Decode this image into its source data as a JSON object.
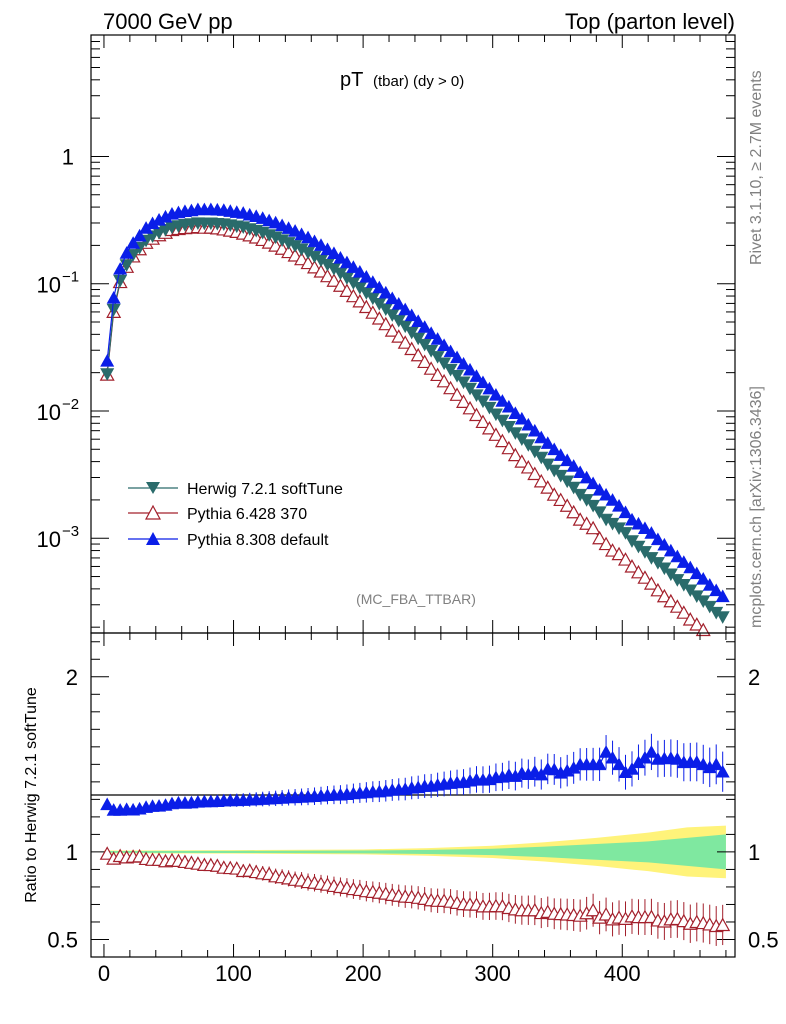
{
  "header": {
    "left": "7000 GeV pp",
    "right": "Top (parton level)"
  },
  "title": {
    "main": "pT",
    "sub": "(tbar) (dy > 0)"
  },
  "side_labels": {
    "rivet": "Rivet 3.1.10, ≥ 2.7M events",
    "mcplots": "mcplots.cern.ch [arXiv:1306.3436]"
  },
  "analysis_tag": "(MC_FBA_TTBAR)",
  "ratio_ylabel": "Ratio to Herwig 7.2.1 softTune",
  "colors": {
    "herwig": "#2a6b6b",
    "pythia6": "#a3202c",
    "pythia8": "#0a1ee8",
    "band_green": "#7fe8a0",
    "band_yellow": "#fff37a"
  },
  "chart_data": [
    {
      "type": "line",
      "yscale": "log",
      "ylim": [
        0.00018,
        9.0
      ],
      "xlim": [
        -10,
        487
      ],
      "yticks": [
        {
          "value": 1,
          "base": "1",
          "exp": ""
        },
        {
          "value": 0.1,
          "base": "10",
          "exp": "−1"
        },
        {
          "value": 0.01,
          "base": "10",
          "exp": "−2"
        },
        {
          "value": 0.001,
          "base": "10",
          "exp": "−3"
        }
      ],
      "legend_position": "lower-left",
      "x": [
        2.5,
        7.5,
        12.5,
        17.5,
        22.5,
        27.5,
        32.5,
        37.5,
        42.5,
        47.5,
        52.5,
        57.5,
        62.5,
        67.5,
        72.5,
        77.5,
        82.5,
        87.5,
        92.5,
        97.5,
        102.5,
        107.5,
        112.5,
        117.5,
        122.5,
        127.5,
        132.5,
        137.5,
        142.5,
        147.5,
        152.5,
        157.5,
        162.5,
        167.5,
        172.5,
        177.5,
        182.5,
        187.5,
        192.5,
        197.5,
        202.5,
        207.5,
        212.5,
        217.5,
        222.5,
        227.5,
        232.5,
        237.5,
        242.5,
        247.5,
        252.5,
        257.5,
        262.5,
        267.5,
        272.5,
        277.5,
        282.5,
        287.5,
        292.5,
        297.5,
        302.5,
        307.5,
        312.5,
        317.5,
        322.5,
        327.5,
        332.5,
        337.5,
        342.5,
        347.5,
        352.5,
        357.5,
        362.5,
        367.5,
        372.5,
        377.5,
        382.5,
        387.5,
        392.5,
        397.5,
        402.5,
        407.5,
        412.5,
        417.5,
        422.5,
        427.5,
        432.5,
        437.5,
        442.5,
        447.5,
        452.5,
        457.5,
        462.5,
        467.5,
        472.5,
        477.5
      ],
      "series": [
        {
          "name": "Herwig 7.2.1 softTune",
          "marker": "triangle-down",
          "values": [
            0.0195,
            0.0625,
            0.1055,
            0.1402,
            0.1683,
            0.1914,
            0.2183,
            0.2364,
            0.2518,
            0.2653,
            0.2774,
            0.2837,
            0.2901,
            0.2938,
            0.2986,
            0.2976,
            0.2983,
            0.2955,
            0.2934,
            0.2879,
            0.2822,
            0.2778,
            0.2687,
            0.2609,
            0.2517,
            0.2408,
            0.2315,
            0.2198,
            0.2088,
            0.1982,
            0.1862,
            0.1754,
            0.1633,
            0.1524,
            0.1409,
            0.1309,
            0.1205,
            0.1106,
            0.1013,
            0.0928,
            0.0845,
            0.0767,
            0.0695,
            0.0631,
            0.0567,
            0.0512,
            0.0462,
            0.0413,
            0.0371,
            0.0332,
            0.0297,
            0.0266,
            0.0237,
            0.0211,
            0.0189,
            0.0168,
            0.015,
            0.0133,
            0.0119,
            0.0106,
            0.0094,
            0.0084,
            0.0075,
            0.0067,
            0.006,
            0.0054,
            0.0048,
            0.0043,
            0.0038,
            0.0034,
            0.0031,
            0.0028,
            0.0025,
            0.0022,
            0.002,
            0.0018,
            0.0016,
            0.0014,
            0.0013,
            0.0012,
            0.0011,
            0.00095,
            0.00086,
            0.00078,
            0.0007,
            0.00064,
            0.00058,
            0.00052,
            0.00047,
            0.00043,
            0.00039,
            0.00035,
            0.00032,
            0.00029,
            0.00026,
            0.00024
          ]
        },
        {
          "name": "Pythia 6.428 370",
          "marker": "triangle-up-open",
          "values": [
            0.0193,
            0.0601,
            0.1031,
            0.1358,
            0.1638,
            0.1866,
            0.2096,
            0.2258,
            0.2405,
            0.2512,
            0.2644,
            0.2693,
            0.2736,
            0.2756,
            0.2785,
            0.2756,
            0.2758,
            0.2721,
            0.2671,
            0.2615,
            0.2554,
            0.2475,
            0.2399,
            0.2309,
            0.2209,
            0.2104,
            0.1993,
            0.1882,
            0.1773,
            0.1667,
            0.1559,
            0.1453,
            0.1345,
            0.1247,
            0.1146,
            0.1055,
            0.0964,
            0.0879,
            0.0798,
            0.0727,
            0.0656,
            0.0592,
            0.0533,
            0.0481,
            0.0428,
            0.0384,
            0.0344,
            0.0307,
            0.0274,
            0.0243,
            0.0215,
            0.0192,
            0.0171,
            0.0151,
            0.0134,
            0.0118,
            0.0105,
            0.0093,
            0.0082,
            0.0073,
            0.0065,
            0.0058,
            0.0051,
            0.0045,
            0.004,
            0.0036,
            0.0032,
            0.0028,
            0.0025,
            0.0022,
            0.002,
            0.0018,
            0.0016,
            0.0014,
            0.0013,
            0.0012,
            0.001,
            0.0009,
            0.0008,
            0.00075,
            0.00068,
            0.0006,
            0.00054,
            0.00049,
            0.00044,
            0.00039,
            0.00035,
            0.00032,
            0.00029,
            0.00026,
            0.00023,
            0.00021,
            0.00019,
            0.00017,
            0.00015,
            0.00014
          ]
        },
        {
          "name": "Pythia 8.308 default",
          "marker": "triangle-up",
          "values": [
            0.0248,
            0.0775,
            0.1308,
            0.1744,
            0.2089,
            0.2387,
            0.2741,
            0.2983,
            0.3181,
            0.3364,
            0.3542,
            0.3633,
            0.3713,
            0.3766,
            0.3839,
            0.3832,
            0.3843,
            0.3813,
            0.3792,
            0.3726,
            0.3654,
            0.3601,
            0.3487,
            0.3391,
            0.3277,
            0.3141,
            0.3024,
            0.2875,
            0.2737,
            0.2601,
            0.2447,
            0.2308,
            0.2152,
            0.2013,
            0.1865,
            0.1736,
            0.1599,
            0.1471,
            0.1351,
            0.1241,
            0.1132,
            0.1031,
            0.0935,
            0.0851,
            0.0768,
            0.0695,
            0.0628,
            0.0564,
            0.0508,
            0.0457,
            0.0409,
            0.0368,
            0.0329,
            0.0294,
            0.0264,
            0.0235,
            0.0211,
            0.0188,
            0.0168,
            0.015,
            0.0134,
            0.012,
            0.0108,
            0.0096,
            0.0087,
            0.0078,
            0.007,
            0.0062,
            0.0056,
            0.005,
            0.0045,
            0.0041,
            0.0037,
            0.0033,
            0.003,
            0.0027,
            0.0024,
            0.0022,
            0.002,
            0.0018,
            0.0016,
            0.0014,
            0.0013,
            0.0012,
            0.0011,
            0.00098,
            0.00089,
            0.0008,
            0.00072,
            0.00065,
            0.00059,
            0.00053,
            0.00048,
            0.00043,
            0.00039,
            0.00035
          ]
        }
      ]
    },
    {
      "type": "line",
      "ylabel": "Ratio to Herwig 7.2.1 softTune",
      "ylim": [
        0.4,
        2.25
      ],
      "yticks": [
        0.5,
        1,
        2
      ],
      "xlim": [
        -10,
        487
      ],
      "xticks": [
        0,
        100,
        200,
        300,
        400
      ],
      "x": [
        2.5,
        7.5,
        12.5,
        17.5,
        22.5,
        27.5,
        32.5,
        37.5,
        42.5,
        47.5,
        52.5,
        57.5,
        62.5,
        67.5,
        72.5,
        77.5,
        82.5,
        87.5,
        92.5,
        97.5,
        102.5,
        107.5,
        112.5,
        117.5,
        122.5,
        127.5,
        132.5,
        137.5,
        142.5,
        147.5,
        152.5,
        157.5,
        162.5,
        167.5,
        172.5,
        177.5,
        182.5,
        187.5,
        192.5,
        197.5,
        202.5,
        207.5,
        212.5,
        217.5,
        222.5,
        227.5,
        232.5,
        237.5,
        242.5,
        247.5,
        252.5,
        257.5,
        262.5,
        267.5,
        272.5,
        277.5,
        282.5,
        287.5,
        292.5,
        297.5,
        302.5,
        307.5,
        312.5,
        317.5,
        322.5,
        327.5,
        332.5,
        337.5,
        342.5,
        347.5,
        352.5,
        357.5,
        362.5,
        367.5,
        372.5,
        377.5,
        382.5,
        387.5,
        392.5,
        397.5,
        402.5,
        407.5,
        412.5,
        417.5,
        422.5,
        427.5,
        432.5,
        437.5,
        442.5,
        447.5,
        452.5,
        457.5,
        462.5,
        467.5,
        472.5,
        477.5
      ],
      "reference": {
        "name": "Herwig 7.2.1 softTune",
        "value": 1.0
      },
      "band": {
        "x": [
          0,
          100,
          200,
          250,
          300,
          340,
          380,
          420,
          450,
          480
        ],
        "inner": [
          0.005,
          0.006,
          0.008,
          0.012,
          0.018,
          0.03,
          0.045,
          0.06,
          0.08,
          0.1
        ],
        "outer": [
          0.008,
          0.01,
          0.014,
          0.022,
          0.035,
          0.055,
          0.08,
          0.11,
          0.14,
          0.15
        ]
      },
      "series": [
        {
          "name": "Pythia 6.428 370",
          "marker": "triangle-up-open",
          "values": [
            0.99,
            0.962,
            0.977,
            0.969,
            0.973,
            0.975,
            0.96,
            0.955,
            0.955,
            0.947,
            0.953,
            0.949,
            0.943,
            0.938,
            0.933,
            0.926,
            0.925,
            0.921,
            0.91,
            0.908,
            0.905,
            0.891,
            0.893,
            0.885,
            0.878,
            0.874,
            0.861,
            0.856,
            0.849,
            0.841,
            0.837,
            0.828,
            0.824,
            0.818,
            0.813,
            0.806,
            0.8,
            0.795,
            0.788,
            0.783,
            0.776,
            0.772,
            0.767,
            0.762,
            0.755,
            0.75,
            0.745,
            0.743,
            0.738,
            0.732,
            0.724,
            0.721,
            0.721,
            0.716,
            0.709,
            0.702,
            0.7,
            0.699,
            0.689,
            0.689,
            0.691,
            0.69,
            0.68,
            0.672,
            0.667,
            0.667,
            0.667,
            0.651,
            0.658,
            0.647,
            0.645,
            0.643,
            0.64,
            0.636,
            0.65,
            0.667,
            0.625,
            0.643,
            0.615,
            0.625,
            0.618,
            0.632,
            0.628,
            0.628,
            0.629,
            0.609,
            0.603,
            0.615,
            0.617,
            0.605,
            0.59,
            0.6,
            0.594,
            0.586,
            0.577,
            0.583
          ]
        },
        {
          "name": "Pythia 8.308 default",
          "marker": "triangle-up",
          "values": [
            1.272,
            1.24,
            1.24,
            1.244,
            1.241,
            1.247,
            1.256,
            1.262,
            1.263,
            1.268,
            1.277,
            1.281,
            1.28,
            1.282,
            1.286,
            1.288,
            1.288,
            1.29,
            1.293,
            1.294,
            1.295,
            1.296,
            1.298,
            1.3,
            1.302,
            1.304,
            1.306,
            1.308,
            1.311,
            1.312,
            1.314,
            1.316,
            1.318,
            1.321,
            1.324,
            1.326,
            1.327,
            1.33,
            1.334,
            1.337,
            1.34,
            1.344,
            1.345,
            1.349,
            1.354,
            1.357,
            1.359,
            1.366,
            1.369,
            1.376,
            1.377,
            1.383,
            1.388,
            1.393,
            1.397,
            1.399,
            1.407,
            1.414,
            1.412,
            1.415,
            1.426,
            1.429,
            1.44,
            1.433,
            1.45,
            1.444,
            1.458,
            1.442,
            1.474,
            1.471,
            1.452,
            1.464,
            1.48,
            1.5,
            1.5,
            1.5,
            1.5,
            1.571,
            1.538,
            1.5,
            1.455,
            1.474,
            1.512,
            1.538,
            1.571,
            1.531,
            1.534,
            1.536,
            1.531,
            1.512,
            1.513,
            1.514,
            1.5,
            1.483,
            1.5,
            1.458
          ]
        }
      ]
    }
  ]
}
